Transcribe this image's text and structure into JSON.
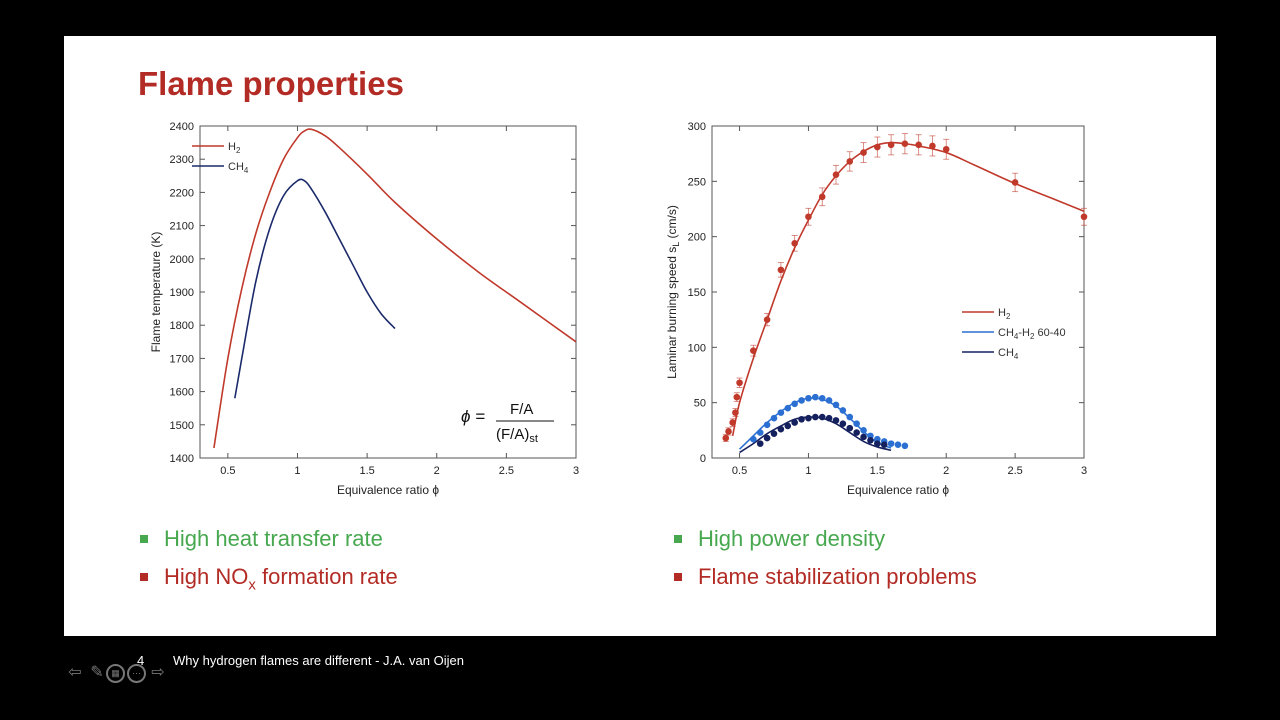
{
  "slide": {
    "title": "Flame properties",
    "page_number": "4",
    "footer": "Why hydrogen flames are different - J.A. van Oijen"
  },
  "formula": {
    "lhs": "ϕ =",
    "numerator": "F/A",
    "denominator": "(F/A)",
    "subscript": "st"
  },
  "bullets": {
    "left": [
      {
        "text": "High heat transfer rate",
        "color": "green"
      },
      {
        "text": "High NO",
        "sub": "x",
        "after": " formation rate",
        "color": "red"
      }
    ],
    "right": [
      {
        "text": "High power density",
        "color": "green"
      },
      {
        "text": "Flame stabilization problems",
        "color": "red"
      }
    ]
  },
  "nav_icons": [
    "arrow-left-icon",
    "pen-icon",
    "grid-icon",
    "more-icon",
    "arrow-right-icon"
  ],
  "chart_data": [
    {
      "type": "line",
      "xlabel": "Equivalence ratio ϕ",
      "ylabel": "Flame temperature (K)",
      "xlim": [
        0.3,
        3
      ],
      "ylim": [
        1400,
        2400
      ],
      "xticks": [
        0.5,
        1,
        1.5,
        2,
        2.5,
        3
      ],
      "xticklabels": [
        "0.5",
        "1",
        "1.5",
        "2",
        "2.5",
        "3"
      ],
      "yticks": [
        1400,
        1500,
        1600,
        1700,
        1800,
        1900,
        2000,
        2100,
        2200,
        2300,
        2400
      ],
      "legend_position": "top-left",
      "series": [
        {
          "name": "H",
          "name_sub": "2",
          "color": "#c0392b",
          "x": [
            0.4,
            0.5,
            0.6,
            0.7,
            0.8,
            0.9,
            1.0,
            1.05,
            1.1,
            1.2,
            1.3,
            1.5,
            1.7,
            2.0,
            2.3,
            2.6,
            3.0
          ],
          "y": [
            1430,
            1700,
            1910,
            2075,
            2200,
            2300,
            2365,
            2385,
            2390,
            2370,
            2335,
            2255,
            2170,
            2060,
            1960,
            1870,
            1750
          ]
        },
        {
          "name": "CH",
          "name_sub": "4",
          "color": "#1b2a6b",
          "x": [
            0.55,
            0.6,
            0.7,
            0.8,
            0.9,
            1.0,
            1.05,
            1.1,
            1.2,
            1.3,
            1.4,
            1.5,
            1.6,
            1.7
          ],
          "y": [
            1580,
            1700,
            1930,
            2090,
            2190,
            2235,
            2235,
            2210,
            2140,
            2060,
            1980,
            1900,
            1835,
            1790
          ]
        }
      ]
    },
    {
      "type": "scatter",
      "xlabel": "Equivalence ratio ϕ",
      "ylabel": "Laminar burning speed s",
      "ylabel_sub": "L",
      "ylabel_unit": " (cm/s)",
      "xlim": [
        0.3,
        3
      ],
      "ylim": [
        0,
        300
      ],
      "xticks": [
        0.5,
        1,
        1.5,
        2,
        2.5,
        3
      ],
      "xticklabels": [
        "0.5",
        "1",
        "1.5",
        "2",
        "2.5",
        "3"
      ],
      "yticks": [
        0,
        50,
        100,
        150,
        200,
        250,
        300
      ],
      "legend_position": "middle-right",
      "series": [
        {
          "name": "H",
          "name_sub": "2",
          "name_after": "",
          "color": "#c0392b",
          "line_x": [
            0.45,
            0.5,
            0.6,
            0.7,
            0.8,
            0.9,
            1.0,
            1.1,
            1.2,
            1.3,
            1.4,
            1.5,
            1.6,
            1.7,
            1.8,
            2.0,
            2.2,
            2.5,
            2.8,
            3.0
          ],
          "line_y": [
            20,
            50,
            90,
            125,
            160,
            190,
            215,
            238,
            255,
            268,
            277,
            283,
            285,
            284,
            282,
            276,
            265,
            248,
            233,
            223
          ],
          "points_x": [
            0.4,
            0.42,
            0.45,
            0.47,
            0.48,
            0.5,
            0.6,
            0.7,
            0.8,
            0.9,
            1.0,
            1.1,
            1.2,
            1.3,
            1.4,
            1.5,
            1.6,
            1.7,
            1.8,
            1.9,
            2.0,
            2.5,
            3.0
          ],
          "points_y": [
            18,
            24,
            32,
            41,
            55,
            68,
            97,
            125,
            170,
            194,
            218,
            236,
            256,
            268,
            276,
            281,
            283,
            284,
            283,
            282,
            279,
            249,
            218
          ],
          "error_bars": true
        },
        {
          "name": "CH",
          "name_sub": "4",
          "name_after": "-H",
          "name_sub2": "2",
          "name_tail": " 60-40",
          "color": "#2a6fd1",
          "line_x": [
            0.5,
            0.6,
            0.7,
            0.8,
            0.9,
            1.0,
            1.1,
            1.2,
            1.3,
            1.4,
            1.5,
            1.6
          ],
          "line_y": [
            8,
            20,
            32,
            42,
            50,
            54,
            53,
            47,
            36,
            24,
            14,
            9
          ],
          "points_x": [
            0.6,
            0.65,
            0.7,
            0.75,
            0.8,
            0.85,
            0.9,
            0.95,
            1.0,
            1.05,
            1.1,
            1.15,
            1.2,
            1.25,
            1.3,
            1.35,
            1.4,
            1.45,
            1.5,
            1.55,
            1.6,
            1.65,
            1.7
          ],
          "points_y": [
            17,
            23,
            30,
            36,
            41,
            45,
            49,
            52,
            54,
            55,
            54,
            52,
            48,
            43,
            37,
            31,
            25,
            20,
            17,
            15,
            13,
            12,
            11
          ],
          "error_bars": false
        },
        {
          "name": "CH",
          "name_sub": "4",
          "name_after": "",
          "color": "#15205e",
          "line_x": [
            0.5,
            0.6,
            0.7,
            0.8,
            0.9,
            1.0,
            1.1,
            1.2,
            1.3,
            1.4,
            1.5,
            1.6
          ],
          "line_y": [
            5,
            13,
            22,
            29,
            35,
            37,
            36,
            31,
            23,
            15,
            10,
            7
          ],
          "points_x": [
            0.65,
            0.7,
            0.75,
            0.8,
            0.85,
            0.9,
            0.95,
            1.0,
            1.05,
            1.1,
            1.15,
            1.2,
            1.25,
            1.3,
            1.35,
            1.4,
            1.45,
            1.5,
            1.55
          ],
          "points_y": [
            13,
            18,
            22,
            26,
            29,
            32,
            35,
            36,
            37,
            37,
            36,
            34,
            31,
            27,
            23,
            19,
            16,
            13,
            12
          ],
          "error_bars": false
        }
      ]
    }
  ]
}
